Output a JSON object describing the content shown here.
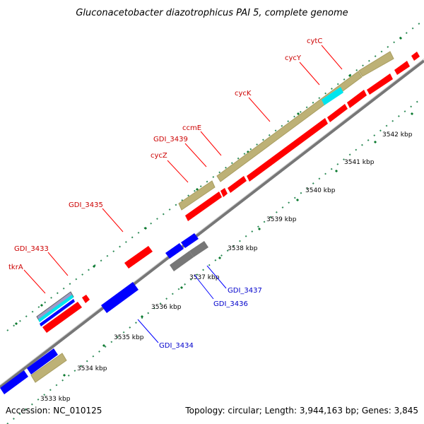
{
  "title": "Gluconacetobacter diazotrophicus PAI 5, complete genome",
  "footer": {
    "accession": "Accession: NC_010125",
    "summary": "Topology: circular; Length: 3,944,163 bp; Genes: 3,845"
  },
  "colors": {
    "background": "#ffffff",
    "backbone": "#6e6e6e",
    "forward_cds": "#ff0000",
    "forward_label": "#cc0000",
    "reverse_cds": "#0000ff",
    "reverse_label": "#0000cc",
    "gene_track": "#bdb176",
    "pseudo_gene": "#777777",
    "rna": "#00e5ee",
    "tick_green": "#2e8b57"
  },
  "scale": {
    "unit": "kbp",
    "ticks": [
      "3533 kbp",
      "3534 kbp",
      "3535 kbp",
      "3536 kbp",
      "3537 kbp",
      "3538 kbp",
      "3539 kbp",
      "3540 kbp",
      "3541 kbp",
      "3542 kbp"
    ]
  },
  "labels": {
    "forward": [
      "tkrA",
      "GDI_3433",
      "GDI_3435",
      "cycZ",
      "GDI_3439",
      "ccmE",
      "cycK",
      "cycY",
      "cytC"
    ],
    "reverse": [
      "GDI_3434",
      "GDI_3436",
      "GDI_3437"
    ]
  }
}
